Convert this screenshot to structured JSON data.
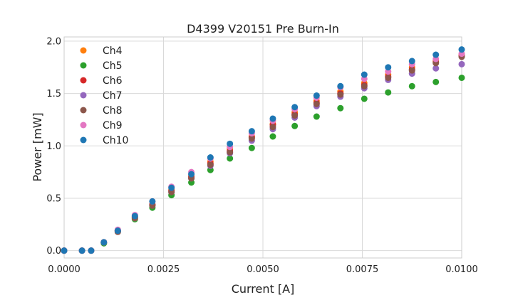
{
  "chart_data": {
    "type": "scatter",
    "title": "D4399 V20151 Pre Burn-In",
    "xlabel": "Current [A]",
    "ylabel": "Power [mW]",
    "xlim": [
      0,
      0.01
    ],
    "ylim": [
      -0.07,
      2.04
    ],
    "grid": true,
    "legend_position": "top-left",
    "x_ticks": [
      "0.0000",
      "0.0025",
      "0.0050",
      "0.0075",
      "0.0100"
    ],
    "x_tick_values": [
      0,
      0.0025,
      0.005,
      0.0075,
      0.01
    ],
    "y_ticks": [
      "0.0",
      "0.5",
      "1.0",
      "1.5",
      "2.0"
    ],
    "y_tick_values": [
      0,
      0.5,
      1.0,
      1.5,
      2.0
    ],
    "x": [
      0,
      0.00045,
      0.00068,
      0.001,
      0.00135,
      0.00178,
      0.00222,
      0.0027,
      0.0032,
      0.00368,
      0.00417,
      0.00472,
      0.00525,
      0.0058,
      0.00635,
      0.00695,
      0.00755,
      0.00815,
      0.00875,
      0.00935,
      0.01
    ],
    "series": [
      {
        "name": "Ch4",
        "color": "#ff7f0e",
        "values": [
          0,
          0,
          0,
          0.08,
          0.19,
          0.32,
          0.44,
          0.58,
          0.71,
          0.85,
          0.97,
          1.09,
          1.21,
          1.32,
          1.43,
          1.52,
          1.6,
          1.68,
          1.75,
          1.81,
          1.87
        ]
      },
      {
        "name": "Ch5",
        "color": "#2ca02c",
        "values": [
          0,
          0,
          0,
          0.07,
          0.18,
          0.3,
          0.41,
          0.53,
          0.65,
          0.77,
          0.88,
          0.98,
          1.09,
          1.19,
          1.28,
          1.36,
          1.45,
          1.51,
          1.57,
          1.61,
          1.65
        ]
      },
      {
        "name": "Ch6",
        "color": "#d62728",
        "values": [
          0,
          0,
          0,
          0.08,
          0.19,
          0.32,
          0.44,
          0.57,
          0.7,
          0.83,
          0.95,
          1.08,
          1.2,
          1.3,
          1.41,
          1.5,
          1.58,
          1.66,
          1.73,
          1.8,
          1.86
        ]
      },
      {
        "name": "Ch7",
        "color": "#9467bd",
        "values": [
          0,
          0,
          0,
          0.08,
          0.18,
          0.31,
          0.43,
          0.56,
          0.69,
          0.81,
          0.93,
          1.05,
          1.16,
          1.27,
          1.38,
          1.47,
          1.55,
          1.63,
          1.69,
          1.74,
          1.78
        ]
      },
      {
        "name": "Ch8",
        "color": "#8c564b",
        "values": [
          0,
          0,
          0,
          0.08,
          0.18,
          0.31,
          0.43,
          0.56,
          0.69,
          0.82,
          0.94,
          1.07,
          1.18,
          1.29,
          1.4,
          1.49,
          1.57,
          1.65,
          1.72,
          1.79,
          1.85
        ]
      },
      {
        "name": "Ch9",
        "color": "#e377c2",
        "values": [
          0,
          0,
          0,
          0.08,
          0.2,
          0.34,
          0.47,
          0.61,
          0.75,
          0.88,
          0.99,
          1.12,
          1.24,
          1.35,
          1.46,
          1.56,
          1.64,
          1.71,
          1.78,
          1.83,
          1.88
        ]
      },
      {
        "name": "Ch10",
        "color": "#1f77b4",
        "values": [
          0,
          0,
          0,
          0.08,
          0.19,
          0.33,
          0.47,
          0.6,
          0.73,
          0.89,
          1.02,
          1.14,
          1.26,
          1.37,
          1.48,
          1.57,
          1.68,
          1.75,
          1.81,
          1.87,
          1.92
        ]
      }
    ]
  }
}
